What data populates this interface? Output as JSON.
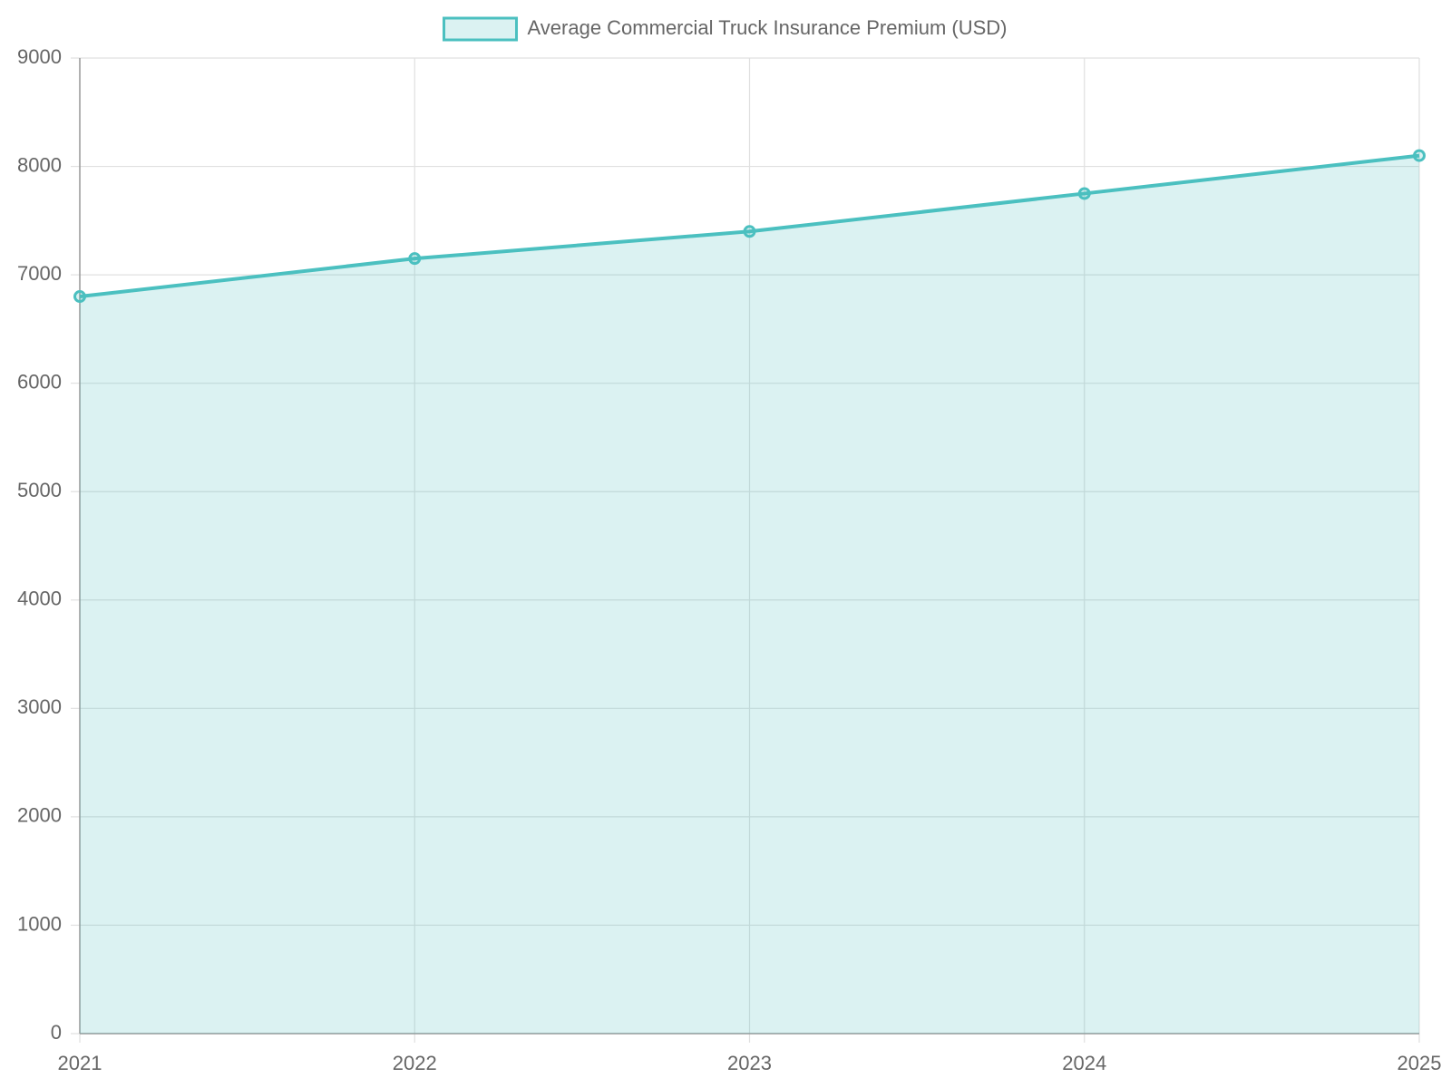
{
  "chart_data": {
    "type": "line",
    "categories": [
      "2021",
      "2022",
      "2023",
      "2024",
      "2025"
    ],
    "series": [
      {
        "name": "Average Commercial Truck Insurance Premium (USD)",
        "color": "#4bc0c0",
        "values": [
          6800,
          7150,
          7400,
          7750,
          8100
        ]
      }
    ],
    "fill": true,
    "ylim": [
      0,
      9000
    ],
    "yticks": [
      0,
      1000,
      2000,
      3000,
      4000,
      5000,
      6000,
      7000,
      8000,
      9000
    ],
    "grid": true,
    "legend": "top"
  }
}
